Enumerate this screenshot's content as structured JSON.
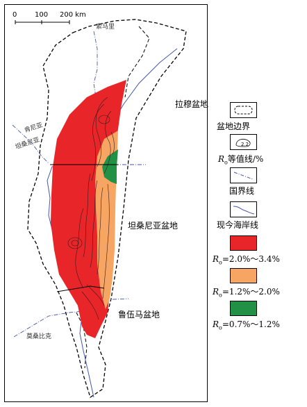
{
  "scale": {
    "zero": "0",
    "mid": "100",
    "end": "200 km"
  },
  "countries": {
    "somalia": "索马里",
    "kenya": "肯尼亚",
    "tanzania": "坦桑尼亚",
    "mozambique": "莫桑比克"
  },
  "basins": {
    "lamu": "拉穆盆地",
    "tanzania_basin": "坦桑尼亚盆地",
    "ruvuma": "鲁伍马盆地"
  },
  "contour_sample_value": "2.2",
  "legend": {
    "basin_boundary": "盆地边界",
    "contour_prefix": "R",
    "contour_sub": "o",
    "contour_suffix": "等值线/%",
    "national_border": "国界线",
    "coastline": "现今海岸线",
    "range_high": "=2.0%～3.4%",
    "range_mid": "=1.2%～2.0%",
    "range_low": "=0.7%～1.2%",
    "ro_prefix": "R",
    "ro_sub": "o"
  },
  "colors": {
    "high": "#e8262a",
    "mid": "#f6a562",
    "low": "#239145",
    "coast": "#4656a8"
  }
}
